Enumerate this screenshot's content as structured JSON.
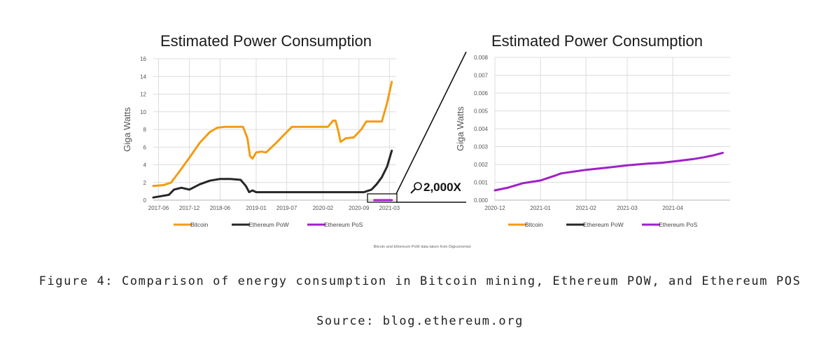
{
  "figure_caption": "Figure 4: Comparison of energy consumption in Bitcoin mining, Ethereum POW, and Ethereum POS",
  "source_caption": "Source: blog.ethereum.org",
  "footnote": "Bitcoin and Ethereum PoW data taken from Digiconomist",
  "zoom_label": "2,000X",
  "colors": {
    "bitcoin": "#f39c12",
    "ethereum_pow": "#262626",
    "ethereum_pos": "#a020c8",
    "grid": "#dcdcdc",
    "axis_text": "#555555"
  },
  "chart_data": [
    {
      "type": "line",
      "title": "Estimated Power Consumption",
      "ylabel": "Giga Watts",
      "xlabel": "",
      "ylim": [
        0,
        16
      ],
      "yticks": [
        0,
        2,
        4,
        6,
        8,
        10,
        12,
        14,
        16
      ],
      "xticks": [
        "2017-06",
        "2017-12",
        "2018-06",
        "2019-01",
        "2019-07",
        "2020-02",
        "2020-09",
        "2021-03"
      ],
      "grid": true,
      "legend": "bottom",
      "series": [
        {
          "name": "Bitcoin",
          "x": [
            "2017-05-01",
            "2017-07-01",
            "2017-08-15",
            "2017-10-01",
            "2017-12-01",
            "2018-02-01",
            "2018-04-01",
            "2018-05-15",
            "2018-07-01",
            "2018-09-15",
            "2018-10-15",
            "2018-11-10",
            "2018-11-25",
            "2018-12-10",
            "2019-01-01",
            "2019-02-01",
            "2019-03-01",
            "2019-05-01",
            "2019-06-15",
            "2019-08-01",
            "2019-10-01",
            "2019-12-01",
            "2020-03-01",
            "2020-04-01",
            "2020-04-15",
            "2020-05-01",
            "2020-05-15",
            "2020-06-15",
            "2020-08-01",
            "2020-09-15",
            "2020-10-15",
            "2020-11-15",
            "2020-12-15",
            "2021-01-15",
            "2021-02-15",
            "2021-03-15"
          ],
          "values": [
            1.6,
            1.7,
            2.0,
            3.2,
            4.8,
            6.5,
            7.7,
            8.2,
            8.3,
            8.3,
            8.3,
            7.0,
            5.0,
            4.7,
            5.4,
            5.5,
            5.4,
            6.5,
            7.4,
            8.3,
            8.3,
            8.3,
            8.3,
            9.0,
            9.0,
            7.9,
            6.6,
            7.0,
            7.1,
            8.0,
            8.9,
            8.9,
            8.9,
            8.9,
            11.0,
            13.4
          ]
        },
        {
          "name": "Ethereum PoW",
          "x": [
            "2017-05-01",
            "2017-07-01",
            "2017-08-01",
            "2017-09-01",
            "2017-10-15",
            "2017-12-01",
            "2018-02-01",
            "2018-04-01",
            "2018-06-01",
            "2018-08-01",
            "2018-10-01",
            "2018-11-01",
            "2018-11-20",
            "2018-12-10",
            "2019-01-01",
            "2019-02-01",
            "2019-04-01",
            "2019-07-01",
            "2019-10-01",
            "2020-01-01",
            "2020-04-01",
            "2020-07-01",
            "2020-10-01",
            "2020-11-15",
            "2020-12-15",
            "2021-01-15",
            "2021-02-15",
            "2021-03-15"
          ],
          "values": [
            0.3,
            0.5,
            0.6,
            1.2,
            1.4,
            1.2,
            1.8,
            2.2,
            2.4,
            2.4,
            2.3,
            1.6,
            0.9,
            1.1,
            0.9,
            0.9,
            0.9,
            0.9,
            0.9,
            0.9,
            0.9,
            0.9,
            0.9,
            1.2,
            1.8,
            2.6,
            3.8,
            5.6
          ]
        },
        {
          "name": "Ethereum PoS",
          "x": [
            "2020-12-01",
            "2021-03-15"
          ],
          "values": [
            0.001,
            0.002
          ]
        }
      ]
    },
    {
      "type": "line",
      "title": "Estimated Power Consumption",
      "ylabel": "Giga Watts",
      "xlabel": "",
      "ylim": [
        0,
        0.008
      ],
      "yticks": [
        0,
        0.001,
        0.002,
        0.003,
        0.004,
        0.005,
        0.006,
        0.007,
        0.008
      ],
      "xticks": [
        "2020-12",
        "2021-01",
        "2021-02",
        "2021-03",
        "2021-04"
      ],
      "grid": true,
      "legend": "bottom",
      "series": [
        {
          "name": "Bitcoin",
          "x": [],
          "values": []
        },
        {
          "name": "Ethereum PoW",
          "x": [],
          "values": []
        },
        {
          "name": "Ethereum PoS",
          "x": [
            "2020-12-01",
            "2020-12-10",
            "2020-12-20",
            "2021-01-01",
            "2021-01-10",
            "2021-01-15",
            "2021-02-01",
            "2021-02-15",
            "2021-03-01",
            "2021-03-15",
            "2021-03-25",
            "2021-04-05",
            "2021-04-15",
            "2021-04-22",
            "2021-04-28",
            "2021-05-05"
          ],
          "values": [
            0.00055,
            0.0007,
            0.00095,
            0.0011,
            0.00135,
            0.0015,
            0.0017,
            0.00182,
            0.00195,
            0.00205,
            0.0021,
            0.0022,
            0.0023,
            0.0024,
            0.0025,
            0.00265
          ]
        }
      ]
    }
  ]
}
